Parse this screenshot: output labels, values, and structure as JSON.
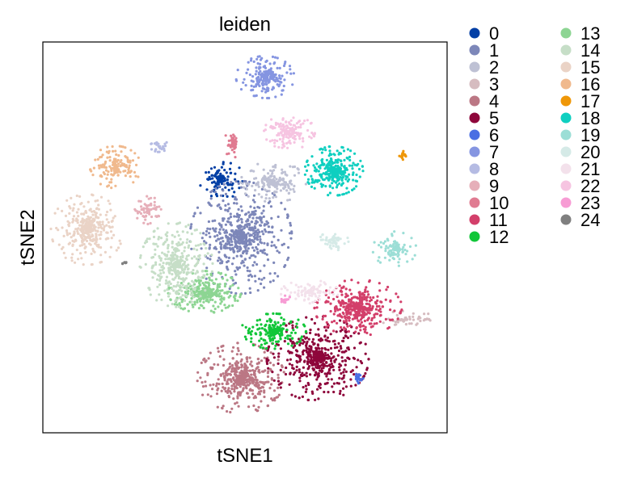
{
  "chart_data": {
    "type": "scatter",
    "title": "leiden",
    "xlabel": "tSNE1",
    "ylabel": "tSNE2",
    "xlim": [
      0,
      100
    ],
    "ylim": [
      0,
      100
    ],
    "grid": false,
    "ticks": false,
    "legend_placement": "right, outside, 2 columns",
    "clusters": [
      {
        "name": "0",
        "color": "#023fa5",
        "x": 44,
        "y": 65,
        "sx": 3,
        "sy": 3,
        "n": 120
      },
      {
        "name": "1",
        "color": "#7d87b9",
        "x": 49,
        "y": 50,
        "sx": 7,
        "sy": 8,
        "n": 600
      },
      {
        "name": "2",
        "color": "#bec1d4",
        "x": 57,
        "y": 64,
        "sx": 4.5,
        "sy": 3,
        "n": 180
      },
      {
        "name": "3",
        "color": "#d6bcc0",
        "x": 90,
        "y": 29,
        "sx": 4,
        "sy": 1.2,
        "n": 60
      },
      {
        "name": "4",
        "color": "#bb7784",
        "x": 49,
        "y": 14,
        "sx": 6,
        "sy": 5,
        "n": 450
      },
      {
        "name": "5",
        "color": "#8e063b",
        "x": 68,
        "y": 19,
        "sx": 7,
        "sy": 6,
        "n": 520
      },
      {
        "name": "6",
        "color": "#4a6fe3",
        "x": 78,
        "y": 14,
        "sx": 0.8,
        "sy": 0.8,
        "n": 20
      },
      {
        "name": "7",
        "color": "#8595e1",
        "x": 55,
        "y": 91,
        "sx": 4,
        "sy": 3,
        "n": 220
      },
      {
        "name": "8",
        "color": "#b5bbe3",
        "x": 29,
        "y": 73,
        "sx": 1.5,
        "sy": 0.9,
        "n": 30
      },
      {
        "name": "9",
        "color": "#e6afb9",
        "x": 26,
        "y": 57,
        "sx": 1.8,
        "sy": 2,
        "n": 70
      },
      {
        "name": "10",
        "color": "#e07b91",
        "x": 47,
        "y": 74,
        "sx": 1.2,
        "sy": 2,
        "n": 50
      },
      {
        "name": "11",
        "color": "#d33f6a",
        "x": 78,
        "y": 32,
        "sx": 6,
        "sy": 4,
        "n": 380
      },
      {
        "name": "12",
        "color": "#11c638",
        "x": 57,
        "y": 26,
        "sx": 4.5,
        "sy": 2.5,
        "n": 200
      },
      {
        "name": "13",
        "color": "#8dd593",
        "x": 40,
        "y": 36,
        "sx": 5,
        "sy": 3,
        "n": 320
      },
      {
        "name": "14",
        "color": "#c6dec7",
        "x": 33,
        "y": 43,
        "sx": 5,
        "sy": 6,
        "n": 380
      },
      {
        "name": "15",
        "color": "#ead3c6",
        "x": 11,
        "y": 52,
        "sx": 5,
        "sy": 5,
        "n": 350
      },
      {
        "name": "16",
        "color": "#f0b98d",
        "x": 18,
        "y": 68,
        "sx": 3.5,
        "sy": 3,
        "n": 150
      },
      {
        "name": "17",
        "color": "#ef9708",
        "x": 89,
        "y": 71,
        "sx": 0.6,
        "sy": 0.6,
        "n": 20
      },
      {
        "name": "18",
        "color": "#0fcfc0",
        "x": 72,
        "y": 67,
        "sx": 4,
        "sy": 3.5,
        "n": 330
      },
      {
        "name": "19",
        "color": "#9cded6",
        "x": 87,
        "y": 47,
        "sx": 3,
        "sy": 2.5,
        "n": 110
      },
      {
        "name": "20",
        "color": "#d5eae7",
        "x": 72,
        "y": 49,
        "sx": 2,
        "sy": 1.5,
        "n": 60
      },
      {
        "name": "21",
        "color": "#f3e1eb",
        "x": 66,
        "y": 36,
        "sx": 4,
        "sy": 1.7,
        "n": 100
      },
      {
        "name": "22",
        "color": "#f6c4e1",
        "x": 61,
        "y": 77,
        "sx": 3.5,
        "sy": 2.5,
        "n": 160
      },
      {
        "name": "23",
        "color": "#f79cd4",
        "x": 60,
        "y": 34,
        "sx": 0.8,
        "sy": 0.6,
        "n": 20
      },
      {
        "name": "24",
        "color": "#7f7f7f",
        "x": 20.5,
        "y": 43.5,
        "sx": 0.5,
        "sy": 0.3,
        "n": 8
      }
    ]
  }
}
